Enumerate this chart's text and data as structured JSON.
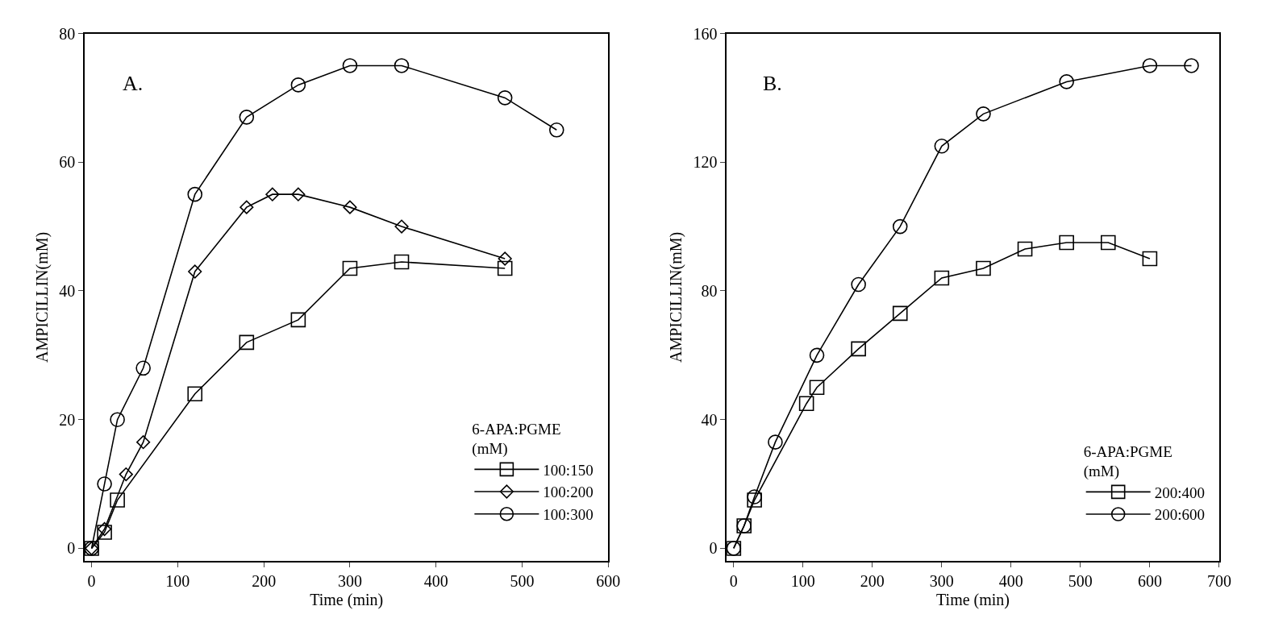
{
  "chart_data": [
    {
      "type": "line",
      "xlabel": "Time (min)",
      "ylabel": "AMPICILLIN(mM)",
      "annotations": [
        "A."
      ],
      "legend_title": "6-APA:PGME\n(mM)",
      "legend": "bottom right",
      "xlim": [
        -8,
        600
      ],
      "ylim": [
        -2,
        80
      ],
      "xticks": [
        0,
        100,
        200,
        300,
        400,
        500,
        600
      ],
      "yticks": [
        0,
        20,
        40,
        60,
        80
      ],
      "series": [
        {
          "name": "100:150",
          "color": "#000000",
          "marker": "square",
          "x": [
            0,
            15,
            30,
            120,
            180,
            240,
            300,
            360,
            480
          ],
          "values": [
            0,
            2.5,
            7.5,
            24,
            32,
            35.5,
            43.5,
            44.5,
            43.5
          ]
        },
        {
          "name": "100:200",
          "color": "#000000",
          "marker": "diamond",
          "x": [
            0,
            15,
            40,
            60,
            120,
            180,
            210,
            240,
            300,
            360,
            480
          ],
          "values": [
            0,
            3,
            11.5,
            16.5,
            43,
            53,
            55,
            55,
            53,
            50,
            45
          ]
        },
        {
          "name": "100:300",
          "color": "#000000",
          "marker": "circle",
          "x": [
            0,
            15,
            30,
            60,
            120,
            180,
            240,
            300,
            360,
            480,
            540
          ],
          "values": [
            0,
            10,
            20,
            28,
            55,
            67,
            72,
            75,
            75,
            70,
            65
          ]
        }
      ]
    },
    {
      "type": "line",
      "xlabel": "Time (min)",
      "ylabel": "AMPICILLIN(mM)",
      "annotations": [
        "B."
      ],
      "legend_title": "6-APA:PGME\n(mM)",
      "legend": "bottom right",
      "xlim": [
        -10,
        700
      ],
      "ylim": [
        -4,
        160
      ],
      "xticks": [
        0,
        100,
        200,
        300,
        400,
        500,
        600,
        700
      ],
      "yticks": [
        0,
        40,
        80,
        120,
        160
      ],
      "series": [
        {
          "name": "200:400",
          "color": "#000000",
          "marker": "square",
          "x": [
            0,
            15,
            30,
            105,
            120,
            180,
            240,
            300,
            360,
            420,
            480,
            540,
            600
          ],
          "values": [
            0,
            7,
            15,
            45,
            50,
            62,
            73,
            84,
            87,
            93,
            95,
            95,
            90
          ]
        },
        {
          "name": "200:600",
          "color": "#000000",
          "marker": "circle",
          "x": [
            0,
            15,
            30,
            60,
            120,
            180,
            240,
            300,
            360,
            480,
            600,
            660
          ],
          "values": [
            0,
            7,
            16,
            33,
            60,
            82,
            100,
            125,
            135,
            145,
            150,
            150
          ]
        }
      ]
    }
  ]
}
